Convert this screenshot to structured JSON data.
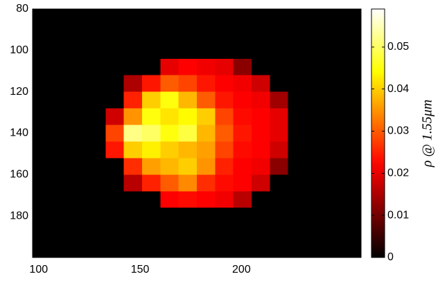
{
  "chart_data": {
    "type": "heatmap",
    "colormap": "hot",
    "xbins": [
      97,
      106,
      115,
      124,
      133,
      142,
      151,
      160,
      169,
      178,
      187,
      196,
      205,
      214,
      223,
      232,
      241,
      250,
      259
    ],
    "ybins": [
      80,
      88,
      96,
      104,
      112,
      120,
      128,
      136,
      144,
      152,
      160,
      168,
      176,
      184,
      192,
      200
    ],
    "values": [
      [
        0,
        0,
        0,
        0,
        0,
        0,
        0,
        0,
        0,
        0,
        0,
        0,
        0,
        0,
        0,
        0,
        0,
        0
      ],
      [
        0,
        0,
        0,
        0,
        0,
        0,
        0,
        0,
        0,
        0,
        0,
        0,
        0,
        0,
        0,
        0,
        0,
        0
      ],
      [
        0,
        0,
        0,
        0,
        0,
        0,
        0,
        0,
        0,
        0,
        0,
        0,
        0,
        0,
        0,
        0,
        0,
        0
      ],
      [
        0,
        0,
        0,
        0,
        0,
        0,
        0,
        0.02,
        0.022,
        0.021,
        0.02,
        0.012,
        0,
        0,
        0,
        0,
        0,
        0
      ],
      [
        0,
        0,
        0,
        0,
        0,
        0.015,
        0.024,
        0.03,
        0.028,
        0.024,
        0.022,
        0.021,
        0.018,
        0,
        0,
        0,
        0,
        0
      ],
      [
        0,
        0,
        0,
        0,
        0,
        0.025,
        0.04,
        0.045,
        0.038,
        0.03,
        0.024,
        0.022,
        0.021,
        0.014,
        0,
        0,
        0,
        0
      ],
      [
        0,
        0,
        0,
        0,
        0.018,
        0.035,
        0.045,
        0.042,
        0.044,
        0.04,
        0.028,
        0.023,
        0.022,
        0.02,
        0,
        0,
        0,
        0
      ],
      [
        0,
        0,
        0,
        0,
        0.028,
        0.052,
        0.05,
        0.045,
        0.048,
        0.038,
        0.03,
        0.024,
        0.022,
        0.02,
        0,
        0,
        0,
        0
      ],
      [
        0,
        0,
        0,
        0,
        0.024,
        0.04,
        0.043,
        0.04,
        0.038,
        0.036,
        0.028,
        0.023,
        0.022,
        0.018,
        0,
        0,
        0,
        0
      ],
      [
        0,
        0,
        0,
        0,
        0,
        0.026,
        0.036,
        0.038,
        0.04,
        0.035,
        0.025,
        0.022,
        0.021,
        0.012,
        0,
        0,
        0,
        0
      ],
      [
        0,
        0,
        0,
        0,
        0,
        0.016,
        0.025,
        0.03,
        0.034,
        0.026,
        0.023,
        0.022,
        0.018,
        0,
        0,
        0,
        0,
        0
      ],
      [
        0,
        0,
        0,
        0,
        0,
        0,
        0,
        0.022,
        0.023,
        0.022,
        0.021,
        0.016,
        0,
        0,
        0,
        0,
        0,
        0
      ],
      [
        0,
        0,
        0,
        0,
        0,
        0,
        0,
        0,
        0,
        0,
        0,
        0,
        0,
        0,
        0,
        0,
        0,
        0
      ],
      [
        0,
        0,
        0,
        0,
        0,
        0,
        0,
        0,
        0,
        0,
        0,
        0,
        0,
        0,
        0,
        0,
        0,
        0
      ],
      [
        0,
        0,
        0,
        0,
        0,
        0,
        0,
        0,
        0,
        0,
        0,
        0,
        0,
        0,
        0,
        0,
        0,
        0
      ]
    ],
    "xlim": [
      97,
      259
    ],
    "ylim": [
      80,
      200
    ],
    "xticks": [
      100,
      150,
      200
    ],
    "yticks": [
      80,
      100,
      120,
      140,
      160,
      180
    ],
    "y_reversed": true,
    "colorbar": {
      "label": "ρ @ 1.55μm",
      "clim": [
        0,
        0.059
      ],
      "ticks": [
        0,
        0.01,
        0.02,
        0.03,
        0.04,
        0.05
      ]
    }
  }
}
